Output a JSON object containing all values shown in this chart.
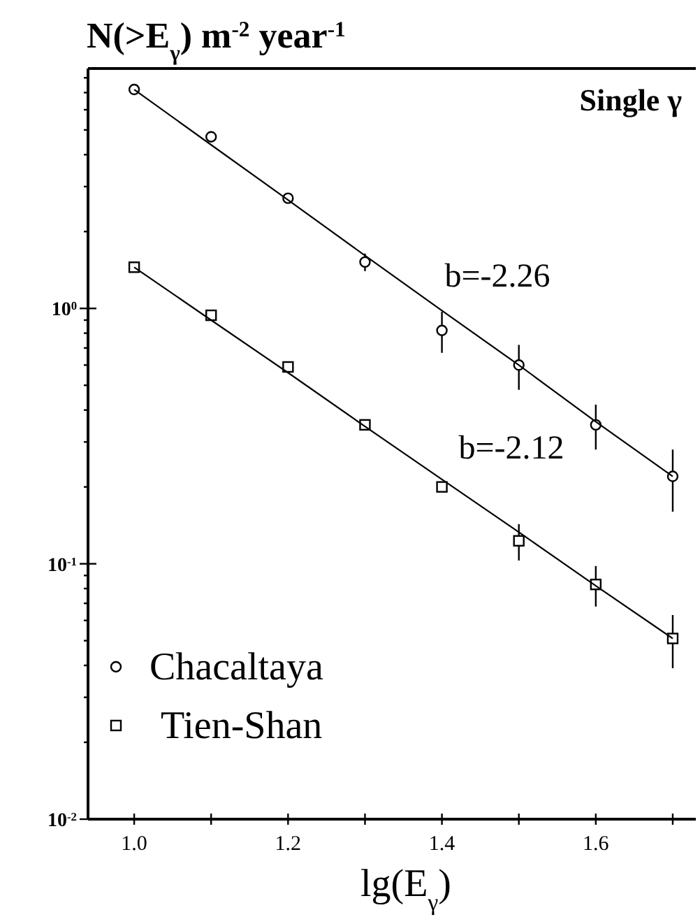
{
  "chart_data": {
    "type": "scatter",
    "ylabel": "N(>E$_{γ}$) m$^{-2}$ year$^{-1}$",
    "xlabel": "lg(E$_{γ}$)",
    "annotations": [
      "Single γ",
      "b=-2.26",
      "b=-2.12"
    ],
    "log": "y",
    "xlim": [
      0.94,
      1.73
    ],
    "ylim": [
      0.01,
      8.7
    ],
    "xticks": [
      {
        "value": 1.0,
        "label": "1.0"
      },
      {
        "value": 1.1,
        "label": null
      },
      {
        "value": 1.2,
        "label": "1.2"
      },
      {
        "value": 1.3,
        "label": null
      },
      {
        "value": 1.4,
        "label": "1.4"
      },
      {
        "value": 1.5,
        "label": null
      },
      {
        "value": 1.6,
        "label": "1.6"
      },
      {
        "value": 1.7,
        "label": null
      }
    ],
    "yticks": [
      {
        "value": 0.01,
        "label": "10$^{-2}$"
      },
      {
        "value": 0.02,
        "label": null
      },
      {
        "value": 0.03,
        "label": null
      },
      {
        "value": 0.04,
        "label": null
      },
      {
        "value": 0.05,
        "label": null
      },
      {
        "value": 0.06,
        "label": null
      },
      {
        "value": 0.07,
        "label": null
      },
      {
        "value": 0.08,
        "label": null
      },
      {
        "value": 0.09,
        "label": null
      },
      {
        "value": 0.1,
        "label": "10$^{-1}$"
      },
      {
        "value": 0.2,
        "label": null
      },
      {
        "value": 0.3,
        "label": null
      },
      {
        "value": 0.4,
        "label": null
      },
      {
        "value": 0.5,
        "label": null
      },
      {
        "value": 0.6,
        "label": null
      },
      {
        "value": 0.7,
        "label": null
      },
      {
        "value": 0.8,
        "label": null
      },
      {
        "value": 0.9,
        "label": null
      },
      {
        "value": 1,
        "label": "10$^{0}$"
      },
      {
        "value": 2,
        "label": null
      },
      {
        "value": 3,
        "label": null
      },
      {
        "value": 4,
        "label": null
      },
      {
        "value": 5,
        "label": null
      },
      {
        "value": 6,
        "label": null
      },
      {
        "value": 7,
        "label": null
      },
      {
        "value": 8,
        "label": null
      }
    ],
    "grid": false,
    "legend": "bottom left",
    "x": [
      1.0,
      1.1,
      1.2,
      1.3,
      1.4,
      1.5,
      1.6,
      1.7
    ],
    "series": [
      {
        "name": "Chacaltaya",
        "color": "#000000",
        "marker": "circle",
        "values": [
          7.2,
          4.7,
          2.7,
          1.52,
          0.82,
          0.6,
          0.35,
          0.22
        ],
        "errors": [
          null,
          null,
          null,
          0.12,
          0.15,
          0.12,
          0.07,
          0.06
        ]
      },
      {
        "name": "Tien-Shan",
        "color": "#000000",
        "marker": "square",
        "values": [
          1.45,
          0.94,
          0.59,
          0.35,
          0.2,
          0.123,
          0.083,
          0.051
        ],
        "errors": [
          null,
          null,
          null,
          null,
          null,
          0.02,
          0.015,
          0.012
        ]
      },
      {
        "type": "line",
        "color": "#000000",
        "values": [
          7.2,
          4.37,
          2.66,
          1.61,
          0.98,
          0.6,
          0.36,
          0.22
        ]
      },
      {
        "type": "line",
        "color": "#000000",
        "values": [
          1.45,
          0.9,
          0.56,
          0.345,
          0.214,
          0.133,
          0.082,
          0.051
        ]
      }
    ]
  }
}
